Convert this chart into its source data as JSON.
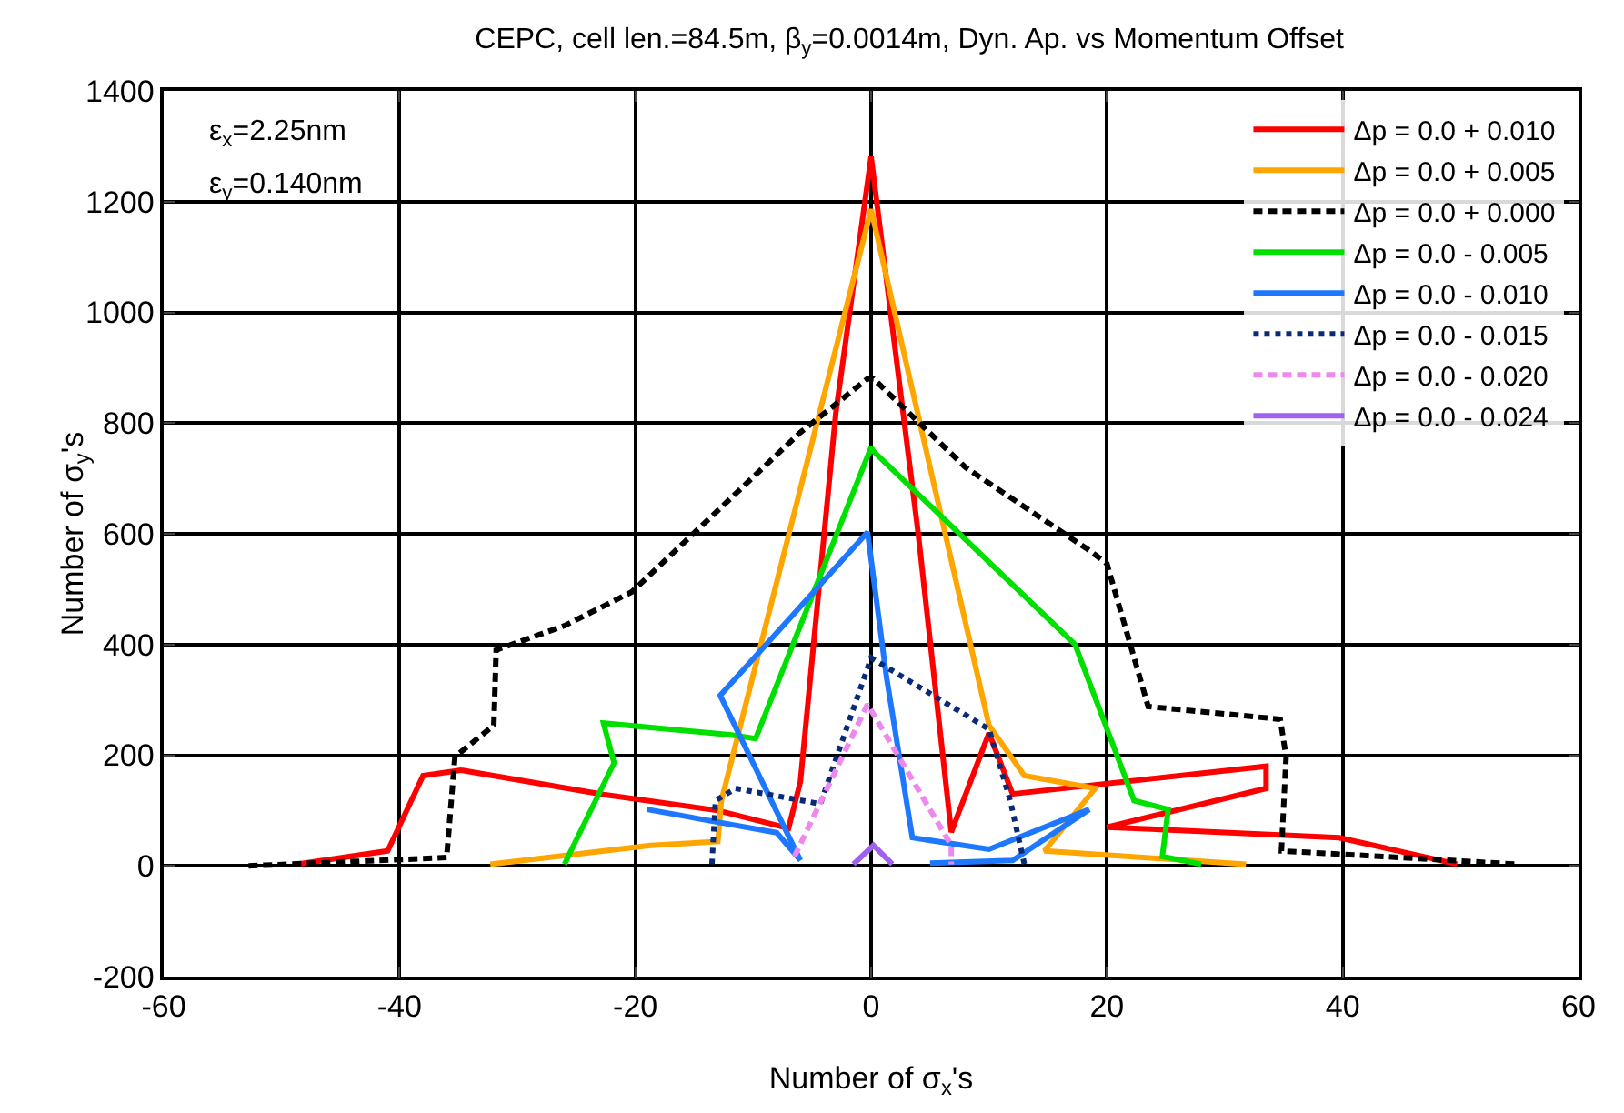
{
  "chart_data": {
    "type": "line",
    "title": "CEPC, cell len.=84.5m, β$_{y}$=0.0014m, Dyn. Ap. vs Momentum Offset",
    "xlabel": "Number of σ$_{x}$'s",
    "ylabel": "Number of σ$_{y}$'s",
    "annotations": [
      "ε$_{x}$=2.25nm",
      "ε$_{y}$=0.140nm"
    ],
    "xlim": [
      -60,
      60
    ],
    "xticks": [
      -60,
      -40,
      -20,
      0,
      20,
      40,
      60
    ],
    "ylim": [
      -200,
      1400
    ],
    "yticks": [
      -200,
      0,
      200,
      400,
      600,
      800,
      1000,
      1200,
      1400
    ],
    "grid": true,
    "legend": "top right",
    "marker": "none",
    "series": [
      {
        "name": "Δp = 0.0 + 0.010",
        "color": "#ff0000",
        "line_style": "solid",
        "x": [
          -48.7,
          -41,
          -38,
          -34.8,
          -22.7,
          -13,
          -7,
          -6,
          -3,
          0,
          4,
          6.8,
          10,
          12,
          33.5,
          33.5,
          20,
          39.7,
          49.7
        ],
        "values": [
          3,
          27,
          163,
          173,
          129,
          100,
          68,
          152,
          817,
          1281,
          600,
          61,
          240,
          130,
          180,
          140,
          70,
          51,
          3
        ]
      },
      {
        "name": "Δp = 0.0 + 0.005",
        "color": "#ffa500",
        "line_style": "solid",
        "x": [
          -32.3,
          -18.7,
          -13,
          -12.7,
          0,
          10,
          13,
          19,
          14.7,
          31.8
        ],
        "values": [
          3,
          37,
          44,
          118,
          1186,
          254,
          163,
          140,
          27,
          3
        ]
      },
      {
        "name": "Δp = 0.0 + 0.000",
        "color": "#000000",
        "line_style": "dashed",
        "x": [
          -52.8,
          -36,
          -35.3,
          -32,
          -31.8,
          -26,
          -20.3,
          -6,
          -0.3,
          0.2,
          8,
          18.5,
          20,
          23.5,
          34.7,
          35.2,
          34.8,
          45,
          54.8
        ],
        "values": [
          0,
          15,
          197,
          254,
          390,
          434,
          495,
          783,
          880,
          880,
          720,
          570,
          546,
          288,
          265,
          197,
          27,
          15,
          3
        ]
      },
      {
        "name": "Δp = 0.0 - 0.005",
        "color": "#00e000",
        "line_style": "solid",
        "x": [
          -26,
          -25.3,
          -21.8,
          -22.7,
          -12,
          -9.8,
          0,
          0.2,
          17.3,
          22.3,
          25.2,
          24.7,
          28
        ],
        "values": [
          3,
          34,
          186,
          258,
          237,
          230,
          756,
          749,
          400,
          118,
          102,
          17,
          3
        ]
      },
      {
        "name": "Δp = 0.0 - 0.010",
        "color": "#1e78ff",
        "line_style": "solid",
        "x": [
          -19,
          -8,
          -6,
          -12.8,
          -0.3,
          1.3,
          3.5,
          10,
          18.5,
          12,
          5
        ],
        "values": [
          102,
          60,
          10,
          308,
          603,
          342,
          51,
          30,
          102,
          10,
          5
        ]
      },
      {
        "name": "Δp = 0.0 - 0.015",
        "color": "#0a2a78",
        "line_style": "dotted",
        "x": [
          -13.5,
          -13.2,
          -11.5,
          -4.3,
          0,
          10,
          11.8,
          13
        ],
        "values": [
          3,
          118,
          140,
          112,
          376,
          247,
          118,
          3
        ]
      },
      {
        "name": "Δp = 0.0 - 0.020",
        "color": "#ee88ee",
        "line_style": "dashed",
        "x": [
          -6.5,
          -0.3,
          6.8,
          6.8
        ],
        "values": [
          17,
          292,
          37,
          3
        ]
      },
      {
        "name": "Δp = 0.0 - 0.024",
        "color": "#a060f0",
        "line_style": "solid",
        "x": [
          -1.5,
          0.2,
          1.8
        ],
        "values": [
          3,
          37,
          3
        ]
      }
    ]
  }
}
